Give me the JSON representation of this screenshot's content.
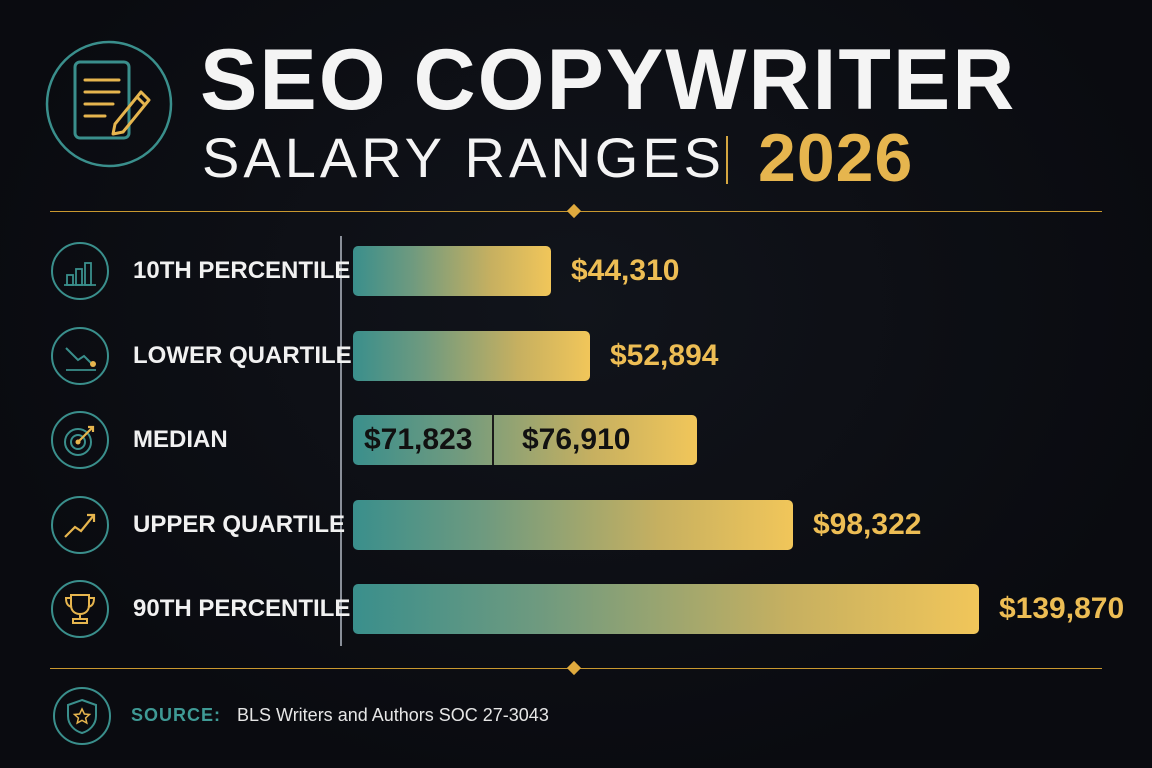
{
  "header": {
    "title": "SEO COPYWRITER",
    "subtitle": "SALARY RANGES",
    "year": "2026",
    "icon": "document-pencil-icon"
  },
  "colors": {
    "background": "#0b0d12",
    "accent_gold": "#e6b54e",
    "accent_teal": "#3a8f8c",
    "bar_gradient_start": "#3a8f8c",
    "bar_gradient_end": "#f1c65a"
  },
  "chart_data": {
    "type": "bar",
    "orientation": "horizontal",
    "title": "SEO COPYWRITER SALARY RANGES 2026",
    "categories": [
      "10TH PERCENTILE",
      "LOWER QUARTILE",
      "MEDIAN",
      "UPPER QUARTILE",
      "90TH PERCENTILE"
    ],
    "values": [
      44310,
      52894,
      76910,
      98322,
      139870
    ],
    "value_labels": [
      "$44,310",
      "$52,894",
      "$76,910",
      "$98,322",
      "$139,870"
    ],
    "median_values": [
      71823,
      76910
    ],
    "median_labels": [
      "$71,823",
      "$76,910"
    ],
    "icons": [
      "bar-chart-icon",
      "trend-down-icon",
      "target-icon",
      "trend-up-icon",
      "trophy-icon"
    ],
    "xlim": [
      0,
      139870
    ],
    "grid": false,
    "legend": "none"
  },
  "footer": {
    "source_label": "SOURCE:",
    "source_text": "BLS Writers and Authors SOC 27-3043",
    "icon": "shield-star-icon"
  }
}
